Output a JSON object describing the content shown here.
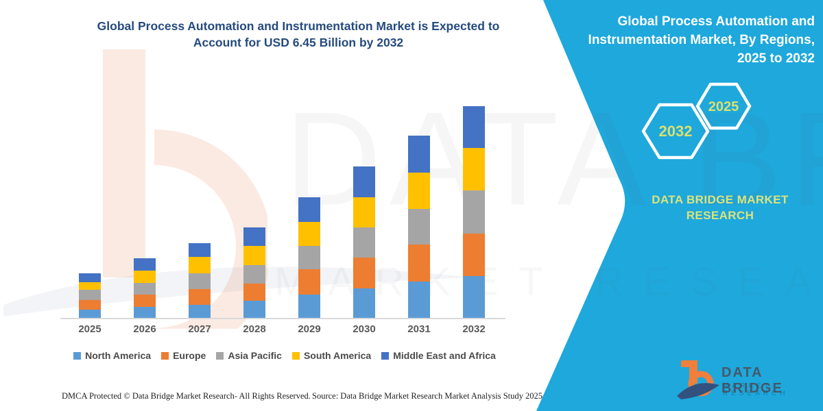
{
  "header": {
    "title": "Global Process Automation and Instrumentation Market is Expected to\nAccount for USD 6.45 Billion by 2032"
  },
  "right_panel": {
    "background_color": "#1EA8DC",
    "title": "Global Process Automation and\nInstrumentation Market, By Regions,\n2025 to 2032",
    "hexagons": [
      {
        "label": "2032"
      },
      {
        "label": "2025"
      }
    ],
    "brand_tagline": "DATA BRIDGE MARKET\nRESEARCH",
    "accent_text_color": "#D8E06E"
  },
  "chart_data": {
    "type": "bar",
    "stacked": true,
    "title": "Global Process Automation and Instrumentation Market is Expected to Account for USD 6.45 Billion by 2032",
    "unit": "USD Billion",
    "categories": [
      "2025",
      "2026",
      "2027",
      "2028",
      "2029",
      "2030",
      "2031",
      "2032"
    ],
    "series": [
      {
        "name": "North America",
        "color": "#5B9BD5",
        "values": [
          0.26,
          0.33,
          0.4,
          0.52,
          0.71,
          0.9,
          1.11,
          1.28
        ]
      },
      {
        "name": "Europe",
        "color": "#ED7D31",
        "values": [
          0.29,
          0.38,
          0.48,
          0.53,
          0.76,
          0.94,
          1.13,
          1.28
        ]
      },
      {
        "name": "Asia Pacific",
        "color": "#A5A5A5",
        "values": [
          0.3,
          0.35,
          0.47,
          0.56,
          0.71,
          0.92,
          1.07,
          1.32
        ]
      },
      {
        "name": "South America",
        "color": "#FFC000",
        "values": [
          0.24,
          0.38,
          0.5,
          0.58,
          0.74,
          0.9,
          1.11,
          1.28
        ]
      },
      {
        "name": "Middle East and Africa",
        "color": "#4472C4",
        "values": [
          0.27,
          0.38,
          0.43,
          0.57,
          0.75,
          0.94,
          1.12,
          1.28
        ]
      }
    ],
    "totals_usd_billion": [
      1.36,
      1.82,
      2.28,
      2.76,
      3.67,
      4.6,
      5.54,
      6.44
    ],
    "highlight_total": "USD 6.45 Billion by 2032",
    "ylim": [
      0,
      6.45
    ],
    "y_axis_visible": false,
    "gridlines": false,
    "legend_position": "bottom"
  },
  "footer": {
    "left": "DMCA Protected © Data Bridge Market Research-  All Rights Reserved.",
    "right": "Source: Data Bridge Market Research  Market Analysis Study 2025"
  },
  "logo": {
    "name": "DATA BRIDGE",
    "subtitle": "MARKET RESEARCH"
  },
  "watermark": {
    "big_text": "DATA BRIDGE",
    "row_text": "MARKET RESEARCH"
  }
}
